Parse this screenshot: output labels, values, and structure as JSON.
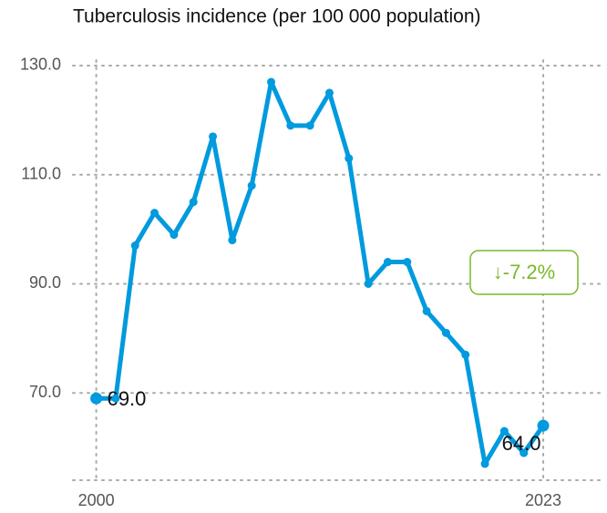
{
  "chart_data": {
    "type": "line",
    "title": "Tuberculosis incidence (per 100 000 population)",
    "x": [
      2000,
      2001,
      2002,
      2003,
      2004,
      2005,
      2006,
      2007,
      2008,
      2009,
      2010,
      2011,
      2012,
      2013,
      2014,
      2015,
      2016,
      2017,
      2018,
      2019,
      2020,
      2021,
      2022,
      2023
    ],
    "series": [
      {
        "name": "Tuberculosis incidence",
        "color": "#009ade",
        "values": [
          69,
          69,
          97,
          103,
          99,
          105,
          117,
          98,
          108,
          127,
          119,
          119,
          125,
          113,
          90,
          94,
          94,
          85,
          81,
          77,
          57,
          63,
          59,
          64
        ],
        "value_labels": [
          "69.0",
          null,
          null,
          null,
          null,
          null,
          null,
          null,
          null,
          null,
          null,
          null,
          null,
          null,
          null,
          null,
          null,
          null,
          null,
          null,
          null,
          null,
          null,
          "64.0"
        ]
      }
    ],
    "xlim": [
      1998.8,
      2026
    ],
    "xticks": [
      2000,
      2023
    ],
    "ylim": [
      54,
      131
    ],
    "yticks": [
      {
        "value": 70,
        "label": "70.0"
      },
      {
        "value": 90,
        "label": "90.0"
      },
      {
        "value": 110,
        "label": "110.0"
      },
      {
        "value": 130,
        "label": "130.0"
      }
    ],
    "grid": true,
    "annotation": {
      "text": "↓-7.2%",
      "color": "#7ab829"
    }
  }
}
